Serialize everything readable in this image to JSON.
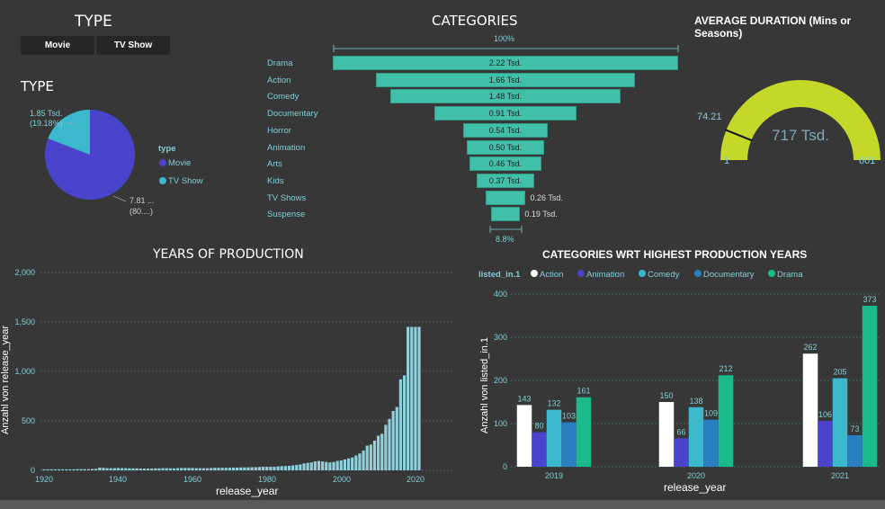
{
  "type_slicer": {
    "title": "TYPE",
    "buttons": [
      "Movie",
      "TV Show"
    ]
  },
  "type_pie": {
    "title": "TYPE",
    "legend_title": "type",
    "legend_items": [
      "Movie",
      "TV Show"
    ],
    "label_tv_line1": "1.85 Tsd.",
    "label_tv_line2": "(19.18%)",
    "label_movie_line1": "7.81 ...",
    "label_movie_line2": "(80....)",
    "colors": {
      "Movie": "#4a44cc",
      "TV Show": "#3bb8cc"
    }
  },
  "categories_funnel": {
    "title": "CATEGORIES",
    "top_pct": "100%",
    "bottom_pct": "8.8%",
    "items": [
      {
        "label": "Drama",
        "value": 2.22,
        "text": "2.22 Tsd."
      },
      {
        "label": "Action",
        "value": 1.66,
        "text": "1.66 Tsd."
      },
      {
        "label": "Comedy",
        "value": 1.48,
        "text": "1.48 Tsd."
      },
      {
        "label": "Documentary",
        "value": 0.91,
        "text": "0.91 Tsd."
      },
      {
        "label": "Horror",
        "value": 0.54,
        "text": "0.54 Tsd."
      },
      {
        "label": "Animation",
        "value": 0.5,
        "text": "0.50 Tsd."
      },
      {
        "label": "Arts",
        "value": 0.46,
        "text": "0.46 Tsd."
      },
      {
        "label": "Kids",
        "value": 0.37,
        "text": "0.37 Tsd."
      },
      {
        "label": "TV Shows",
        "value": 0.26,
        "text": "0.26 Tsd."
      },
      {
        "label": "Suspense",
        "value": 0.19,
        "text": "0.19 Tsd."
      }
    ]
  },
  "gauge": {
    "title": "AVERAGE DURATION (Mins or Seasons)",
    "value_text": "717 Tsd.",
    "min": 1,
    "max": 601,
    "target": 74.21,
    "min_text": "1",
    "max_text": "601",
    "target_text": "74.21",
    "fill_fraction": 1.0,
    "color": "#c5d82a"
  },
  "years_chart": {
    "title": "YEARS OF PRODUCTION",
    "xlabel": "release_year",
    "ylabel": "Anzahl von release_year",
    "yticks": [
      "2,000",
      "1,500",
      "1,000",
      "500",
      "0"
    ],
    "xticks": [
      "1920",
      "1940",
      "1960",
      "1980",
      "2000",
      "2020"
    ]
  },
  "group_chart": {
    "title": "CATEGORIES WRT HIGHEST PRODUCTION YEARS",
    "legend_title": "listed_in.1",
    "xlabel": "release_year",
    "ylabel": "Anzahl von listed_in.1",
    "yticks": [
      "400",
      "300",
      "200",
      "100",
      "0"
    ]
  },
  "chart_data": [
    {
      "type": "pie",
      "title": "TYPE",
      "categories": [
        "Movie",
        "TV Show"
      ],
      "values": [
        7810,
        1850
      ],
      "percentages": [
        80.82,
        19.18
      ]
    },
    {
      "type": "bar",
      "subtype": "funnel",
      "title": "CATEGORIES",
      "categories": [
        "Drama",
        "Action",
        "Comedy",
        "Documentary",
        "Horror",
        "Animation",
        "Arts",
        "Kids",
        "TV Shows",
        "Suspense"
      ],
      "values": [
        2220,
        1660,
        1480,
        910,
        540,
        500,
        460,
        370,
        260,
        190
      ]
    },
    {
      "type": "bar",
      "title": "YEARS OF PRODUCTION",
      "xlabel": "release_year",
      "ylabel": "Anzahl von release_year",
      "ylim": [
        0,
        2000
      ],
      "x": [
        1920,
        1921,
        1922,
        1923,
        1924,
        1925,
        1926,
        1927,
        1928,
        1929,
        1930,
        1931,
        1932,
        1933,
        1934,
        1935,
        1936,
        1937,
        1938,
        1939,
        1940,
        1941,
        1942,
        1943,
        1944,
        1945,
        1946,
        1947,
        1948,
        1949,
        1950,
        1951,
        1952,
        1953,
        1954,
        1955,
        1956,
        1957,
        1958,
        1959,
        1960,
        1961,
        1962,
        1963,
        1964,
        1965,
        1966,
        1967,
        1968,
        1969,
        1970,
        1971,
        1972,
        1973,
        1974,
        1975,
        1976,
        1977,
        1978,
        1979,
        1980,
        1981,
        1982,
        1983,
        1984,
        1985,
        1986,
        1987,
        1988,
        1989,
        1990,
        1991,
        1992,
        1993,
        1994,
        1995,
        1996,
        1997,
        1998,
        1999,
        2000,
        2001,
        2002,
        2003,
        2004,
        2005,
        2006,
        2007,
        2008,
        2009,
        2010,
        2011,
        2012,
        2013,
        2014,
        2015,
        2016,
        2017,
        2018,
        2019,
        2020,
        2021
      ],
      "values": [
        10,
        10,
        10,
        10,
        10,
        10,
        10,
        10,
        10,
        12,
        12,
        12,
        12,
        14,
        15,
        28,
        26,
        22,
        22,
        22,
        24,
        22,
        22,
        20,
        20,
        20,
        18,
        18,
        18,
        18,
        20,
        20,
        22,
        22,
        20,
        20,
        22,
        24,
        24,
        24,
        24,
        22,
        22,
        22,
        22,
        24,
        26,
        26,
        26,
        26,
        26,
        28,
        28,
        30,
        30,
        30,
        32,
        32,
        34,
        36,
        36,
        36,
        36,
        40,
        42,
        44,
        46,
        50,
        55,
        60,
        70,
        75,
        80,
        90,
        95,
        90,
        85,
        80,
        85,
        95,
        100,
        110,
        120,
        130,
        150,
        170,
        200,
        250,
        260,
        300,
        350,
        370,
        460,
        520,
        600,
        640,
        920,
        960,
        1450,
        1450,
        1450,
        1450
      ]
    },
    {
      "type": "bar",
      "title": "CATEGORIES WRT HIGHEST PRODUCTION YEARS",
      "xlabel": "release_year",
      "ylabel": "Anzahl von listed_in.1",
      "ylim": [
        0,
        400
      ],
      "categories": [
        "2019",
        "2020",
        "2021"
      ],
      "series": [
        {
          "name": "Action",
          "color": "#ffffff",
          "values": [
            143,
            150,
            262
          ]
        },
        {
          "name": "Animation",
          "color": "#4a44cc",
          "values": [
            80,
            66,
            106
          ]
        },
        {
          "name": "Comedy",
          "color": "#3bb8cc",
          "values": [
            132,
            138,
            205
          ]
        },
        {
          "name": "Documentary",
          "color": "#2a7fc0",
          "values": [
            103,
            109,
            73
          ]
        },
        {
          "name": "Drama",
          "color": "#1aba8c",
          "values": [
            161,
            212,
            373
          ]
        }
      ]
    }
  ]
}
